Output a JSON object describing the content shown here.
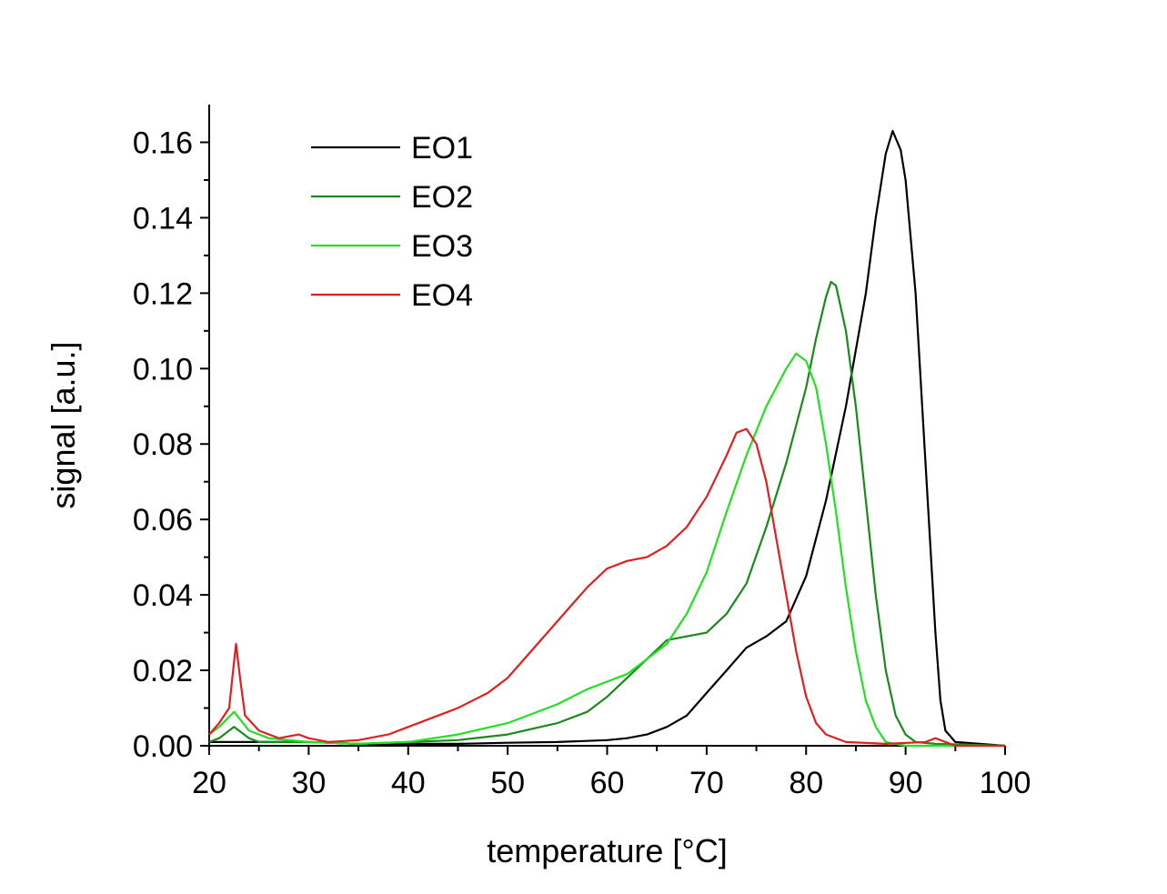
{
  "chart_data": {
    "type": "line",
    "xlabel": "temperature [°C]",
    "ylabel": "signal [a.u.]",
    "xlim": [
      20,
      100
    ],
    "ylim": [
      0,
      0.17
    ],
    "x_ticks": [
      "20",
      "30",
      "40",
      "50",
      "60",
      "70",
      "80",
      "90",
      "100"
    ],
    "y_ticks": [
      "0.00",
      "0.02",
      "0.04",
      "0.06",
      "0.08",
      "0.10",
      "0.12",
      "0.14",
      "0.16"
    ],
    "legend_position": "top-left",
    "grid": false,
    "series": [
      {
        "name": "EO1",
        "color": "#000000",
        "points": [
          [
            20,
            0.001
          ],
          [
            22,
            0.001
          ],
          [
            25,
            0.001
          ],
          [
            30,
            0.001
          ],
          [
            35,
            0.0005
          ],
          [
            40,
            0.0005
          ],
          [
            45,
            0.0005
          ],
          [
            50,
            0.0008
          ],
          [
            55,
            0.001
          ],
          [
            60,
            0.0015
          ],
          [
            62,
            0.002
          ],
          [
            64,
            0.003
          ],
          [
            66,
            0.005
          ],
          [
            68,
            0.008
          ],
          [
            70,
            0.014
          ],
          [
            72,
            0.02
          ],
          [
            74,
            0.026
          ],
          [
            76,
            0.029
          ],
          [
            78,
            0.033
          ],
          [
            80,
            0.045
          ],
          [
            82,
            0.065
          ],
          [
            84,
            0.09
          ],
          [
            86,
            0.12
          ],
          [
            87,
            0.14
          ],
          [
            88,
            0.157
          ],
          [
            88.7,
            0.163
          ],
          [
            89.5,
            0.158
          ],
          [
            90,
            0.15
          ],
          [
            91,
            0.12
          ],
          [
            92,
            0.075
          ],
          [
            93,
            0.03
          ],
          [
            93.5,
            0.012
          ],
          [
            94,
            0.004
          ],
          [
            95,
            0.001
          ],
          [
            100,
            0
          ]
        ]
      },
      {
        "name": "EO2",
        "color": "#1a8a1a",
        "points": [
          [
            20,
            0.001
          ],
          [
            21,
            0.002
          ],
          [
            22.5,
            0.005
          ],
          [
            24,
            0.002
          ],
          [
            25,
            0.001
          ],
          [
            30,
            0.001
          ],
          [
            35,
            0.0005
          ],
          [
            40,
            0.001
          ],
          [
            45,
            0.0015
          ],
          [
            50,
            0.003
          ],
          [
            55,
            0.006
          ],
          [
            58,
            0.009
          ],
          [
            60,
            0.013
          ],
          [
            62,
            0.018
          ],
          [
            64,
            0.023
          ],
          [
            66,
            0.028
          ],
          [
            68,
            0.029
          ],
          [
            70,
            0.03
          ],
          [
            72,
            0.035
          ],
          [
            74,
            0.043
          ],
          [
            76,
            0.058
          ],
          [
            78,
            0.075
          ],
          [
            80,
            0.095
          ],
          [
            81,
            0.108
          ],
          [
            82,
            0.119
          ],
          [
            82.5,
            0.123
          ],
          [
            83,
            0.122
          ],
          [
            84,
            0.11
          ],
          [
            85,
            0.09
          ],
          [
            86,
            0.065
          ],
          [
            87,
            0.04
          ],
          [
            88,
            0.02
          ],
          [
            89,
            0.008
          ],
          [
            90,
            0.003
          ],
          [
            91,
            0.001
          ],
          [
            93,
            0.0005
          ],
          [
            100,
            0
          ]
        ]
      },
      {
        "name": "EO3",
        "color": "#22e022",
        "points": [
          [
            20,
            0.003
          ],
          [
            21,
            0.005
          ],
          [
            22.5,
            0.009
          ],
          [
            24,
            0.004
          ],
          [
            26,
            0.002
          ],
          [
            30,
            0.001
          ],
          [
            35,
            0.0005
          ],
          [
            40,
            0.001
          ],
          [
            45,
            0.003
          ],
          [
            50,
            0.006
          ],
          [
            55,
            0.011
          ],
          [
            58,
            0.015
          ],
          [
            60,
            0.017
          ],
          [
            62,
            0.019
          ],
          [
            64,
            0.023
          ],
          [
            66,
            0.027
          ],
          [
            68,
            0.035
          ],
          [
            70,
            0.046
          ],
          [
            72,
            0.062
          ],
          [
            74,
            0.077
          ],
          [
            76,
            0.09
          ],
          [
            78,
            0.1
          ],
          [
            79,
            0.104
          ],
          [
            80,
            0.102
          ],
          [
            81,
            0.095
          ],
          [
            82,
            0.08
          ],
          [
            83,
            0.062
          ],
          [
            84,
            0.042
          ],
          [
            85,
            0.025
          ],
          [
            86,
            0.012
          ],
          [
            87,
            0.005
          ],
          [
            88,
            0.001
          ],
          [
            90,
            0
          ],
          [
            100,
            0
          ]
        ]
      },
      {
        "name": "EO4",
        "color": "#e02020",
        "points": [
          [
            20,
            0.003
          ],
          [
            21,
            0.006
          ],
          [
            22,
            0.01
          ],
          [
            22.4,
            0.02
          ],
          [
            22.7,
            0.027
          ],
          [
            23.1,
            0.018
          ],
          [
            23.6,
            0.008
          ],
          [
            25,
            0.004
          ],
          [
            27,
            0.002
          ],
          [
            29,
            0.003
          ],
          [
            30,
            0.002
          ],
          [
            32,
            0.001
          ],
          [
            35,
            0.0015
          ],
          [
            38,
            0.003
          ],
          [
            40,
            0.005
          ],
          [
            43,
            0.008
          ],
          [
            45,
            0.01
          ],
          [
            48,
            0.014
          ],
          [
            50,
            0.018
          ],
          [
            52,
            0.024
          ],
          [
            55,
            0.033
          ],
          [
            58,
            0.042
          ],
          [
            60,
            0.047
          ],
          [
            62,
            0.049
          ],
          [
            64,
            0.05
          ],
          [
            66,
            0.053
          ],
          [
            68,
            0.058
          ],
          [
            70,
            0.066
          ],
          [
            72,
            0.077
          ],
          [
            73,
            0.083
          ],
          [
            74,
            0.084
          ],
          [
            75,
            0.08
          ],
          [
            76,
            0.07
          ],
          [
            77,
            0.055
          ],
          [
            78,
            0.04
          ],
          [
            79,
            0.025
          ],
          [
            80,
            0.013
          ],
          [
            81,
            0.006
          ],
          [
            82,
            0.003
          ],
          [
            84,
            0.001
          ],
          [
            88,
            0.0005
          ],
          [
            92,
            0.001
          ],
          [
            93,
            0.002
          ],
          [
            95,
            0
          ],
          [
            100,
            0
          ]
        ]
      }
    ]
  }
}
